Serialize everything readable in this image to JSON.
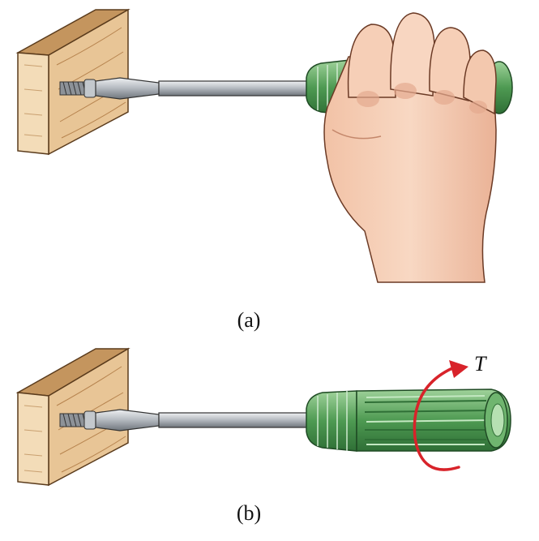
{
  "figure": {
    "panel_a": {
      "caption": "(a)"
    },
    "panel_b": {
      "caption": "(b)",
      "torque_label": "T"
    }
  },
  "colors": {
    "wood_face": "#e8c596",
    "wood_edge": "#c4955e",
    "wood_end": "#f3dcb8",
    "handle_green": "#4e9a52",
    "handle_dark": "#2f6f36",
    "handle_light": "#9fd29a",
    "shaft_steel": "#b9bec4",
    "skin": "#f6cfb7",
    "skin_shadow": "#e4a98e",
    "arrow_red": "#d8232a"
  }
}
